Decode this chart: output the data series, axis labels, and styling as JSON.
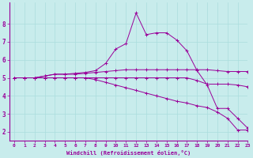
{
  "xlabel": "Windchill (Refroidissement éolien,°C)",
  "background_color": "#c8ecec",
  "line_color": "#990099",
  "grid_color": "#aadddd",
  "x": [
    0,
    1,
    2,
    3,
    4,
    5,
    6,
    7,
    8,
    9,
    10,
    11,
    12,
    13,
    14,
    15,
    16,
    17,
    18,
    19,
    20,
    21,
    22,
    23
  ],
  "line1": [
    5.0,
    5.0,
    5.0,
    5.1,
    5.2,
    5.2,
    5.2,
    5.25,
    5.3,
    5.35,
    5.4,
    5.45,
    5.45,
    5.45,
    5.45,
    5.45,
    5.45,
    5.45,
    5.45,
    5.45,
    5.4,
    5.35,
    5.35,
    5.35
  ],
  "line2": [
    5.0,
    5.0,
    5.0,
    5.1,
    5.2,
    5.2,
    5.25,
    5.3,
    5.4,
    5.8,
    6.6,
    6.9,
    8.6,
    7.4,
    7.5,
    7.5,
    7.1,
    6.5,
    5.4,
    4.6,
    3.3,
    3.3,
    2.75,
    2.2
  ],
  "line3": [
    5.0,
    5.0,
    5.0,
    5.0,
    5.0,
    5.0,
    5.0,
    5.0,
    5.0,
    5.0,
    5.0,
    5.0,
    5.0,
    5.0,
    5.0,
    5.0,
    5.0,
    5.0,
    4.85,
    4.65,
    4.65,
    4.65,
    4.6,
    4.5
  ],
  "line4": [
    5.0,
    5.0,
    5.0,
    5.0,
    5.0,
    5.0,
    5.0,
    5.0,
    4.9,
    4.75,
    4.6,
    4.45,
    4.3,
    4.15,
    4.0,
    3.85,
    3.7,
    3.6,
    3.45,
    3.35,
    3.1,
    2.75,
    2.1,
    2.1
  ],
  "ylim": [
    1.5,
    9.2
  ],
  "xlim": [
    -0.5,
    23
  ],
  "yticks": [
    2,
    3,
    4,
    5,
    6,
    7,
    8
  ],
  "xticks": [
    0,
    1,
    2,
    3,
    4,
    5,
    6,
    7,
    8,
    9,
    10,
    11,
    12,
    13,
    14,
    15,
    16,
    17,
    18,
    19,
    20,
    21,
    22,
    23
  ]
}
